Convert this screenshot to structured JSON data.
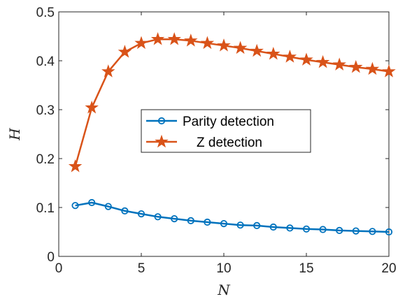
{
  "chart_data": {
    "type": "line",
    "xlabel": "N",
    "ylabel": "H",
    "xlim": [
      0,
      20
    ],
    "ylim": [
      0,
      0.5
    ],
    "xticks": [
      "0",
      "5",
      "10",
      "15",
      "20"
    ],
    "yticks": [
      "0",
      "0.1",
      "0.2",
      "0.3",
      "0.4",
      "0.5"
    ],
    "grid": false,
    "legend_position": "center",
    "x": [
      1,
      2,
      3,
      4,
      5,
      6,
      7,
      8,
      9,
      10,
      11,
      12,
      13,
      14,
      15,
      16,
      17,
      18,
      19,
      20
    ],
    "series": [
      {
        "name": "Parity detection",
        "marker": "circle",
        "color": "#0072BD",
        "values": [
          0.104,
          0.11,
          0.102,
          0.093,
          0.087,
          0.081,
          0.077,
          0.073,
          0.07,
          0.067,
          0.064,
          0.063,
          0.06,
          0.058,
          0.056,
          0.055,
          0.053,
          0.052,
          0.051,
          0.05
        ]
      },
      {
        "name": "Z detection",
        "marker": "star",
        "color": "#D95319",
        "values": [
          0.184,
          0.304,
          0.378,
          0.418,
          0.436,
          0.444,
          0.444,
          0.441,
          0.436,
          0.431,
          0.426,
          0.42,
          0.414,
          0.408,
          0.402,
          0.397,
          0.392,
          0.387,
          0.383,
          0.378
        ]
      }
    ]
  }
}
